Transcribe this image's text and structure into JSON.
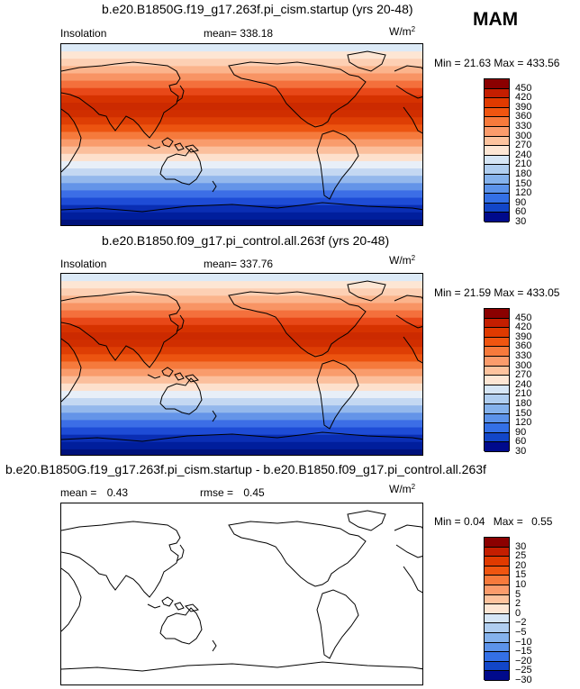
{
  "season": "MAM",
  "units_base": "W/m",
  "units_exp": "2",
  "panels": [
    {
      "title": "b.e20.B1850G.f19_g17.263f.pi_cism.startup (yrs 20-48)",
      "left_label": "Insolation",
      "mean_label": "mean=",
      "mean_value": "338.18",
      "min_label": "Min =",
      "min_value": "21.63",
      "max_label": "Max =",
      "max_value": "433.56",
      "colorbar_labels": [
        "450",
        "420",
        "390",
        "360",
        "330",
        "300",
        "270",
        "240",
        "210",
        "180",
        "150",
        "120",
        "90",
        "60",
        "30"
      ]
    },
    {
      "title": "b.e20.B1850.f09_g17.pi_control.all.263f (yrs 20-48)",
      "left_label": "Insolation",
      "mean_label": "mean=",
      "mean_value": "337.76",
      "min_label": "Min =",
      "min_value": "21.59",
      "max_label": "Max =",
      "max_value": "433.05",
      "colorbar_labels": [
        "450",
        "420",
        "390",
        "360",
        "330",
        "300",
        "270",
        "240",
        "210",
        "180",
        "150",
        "120",
        "90",
        "60",
        "30"
      ]
    },
    {
      "title": "b.e20.B1850G.f19_g17.263f.pi_cism.startup - b.e20.B1850.f09_g17.pi_control.all.263f",
      "mean_label": "mean =",
      "mean_value": "0.43",
      "rmse_label": "rmse =",
      "rmse_value": "0.45",
      "min_label": "Min =",
      "min_value": "0.04",
      "max_label": "Max =",
      "max_value": "0.55",
      "colorbar_labels": [
        "30",
        "25",
        "20",
        "15",
        "10",
        "5",
        "2",
        "0",
        "−2",
        "−5",
        "−10",
        "−15",
        "−20",
        "−25",
        "−30"
      ]
    }
  ],
  "colorbar_colors": [
    "#8b0000",
    "#c41e00",
    "#e03a00",
    "#f05510",
    "#f77a3c",
    "#fb9c6c",
    "#fdc39e",
    "#fde6d4",
    "#d6e6f6",
    "#b0cef0",
    "#85b2ec",
    "#5c93ea",
    "#3470e6",
    "#1246c8",
    "#000a8c"
  ],
  "map_band_colors": [
    "#dceaf7",
    "#fde6d4",
    "#fdd0b4",
    "#fbb48c",
    "#f89464",
    "#f4703c",
    "#e84818",
    "#d63200",
    "#cc2a00",
    "#d02e00",
    "#de3e04",
    "#ec5410",
    "#f57a3c",
    "#f99c6c",
    "#fbbf9c",
    "#fde0cc",
    "#e8eff8",
    "#c4d8f2",
    "#94b8ec",
    "#6494e8",
    "#3c6ee6",
    "#1e4cd6",
    "#0a2eb4",
    "#001e9c",
    "#00127c"
  ]
}
